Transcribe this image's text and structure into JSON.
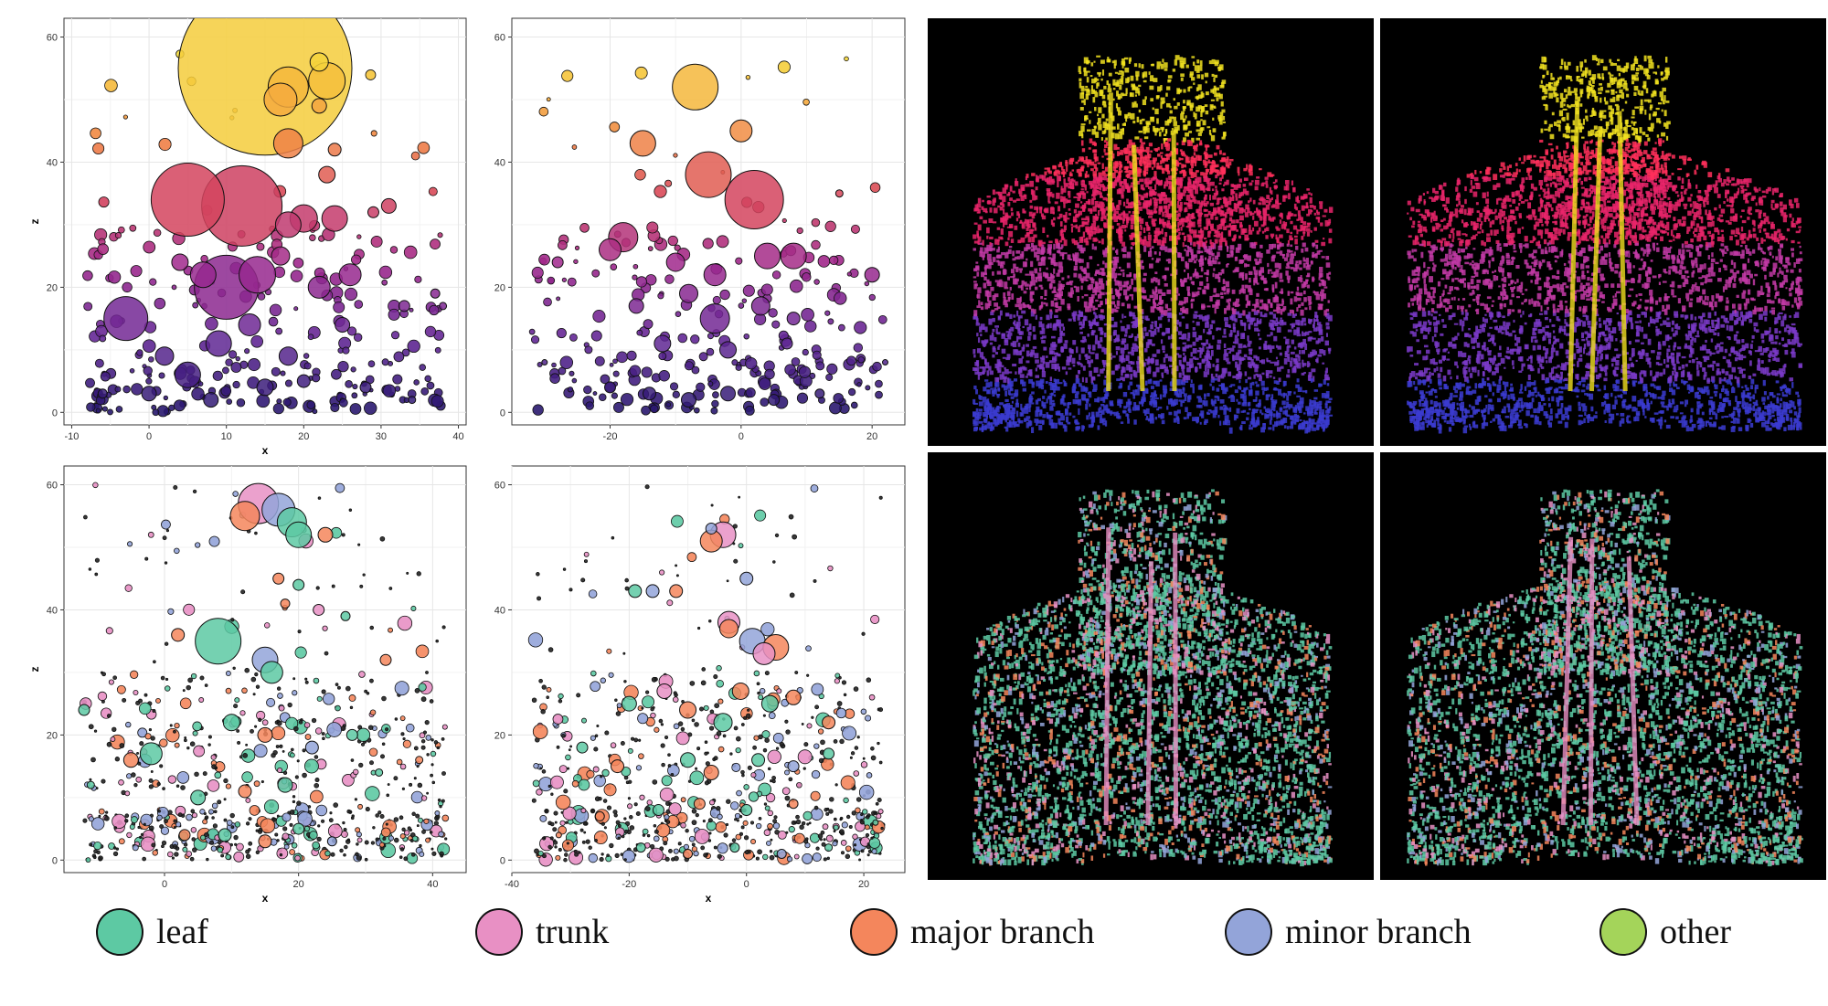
{
  "legend": {
    "items": [
      {
        "label": "leaf",
        "color": "#5dc9a3"
      },
      {
        "label": "trunk",
        "color": "#e890c4"
      },
      {
        "label": "major branch",
        "color": "#f4865c"
      },
      {
        "label": "minor branch",
        "color": "#93a4d9"
      },
      {
        "label": "other",
        "color": "#a4d45a"
      }
    ]
  },
  "chart_data": [
    {
      "type": "scatter",
      "xlabel": "x",
      "ylabel": "z",
      "xlim": [
        -11,
        41
      ],
      "ylim": [
        -2,
        63
      ],
      "xticks": [
        -10,
        0,
        10,
        20,
        30,
        40
      ],
      "yticks": [
        0,
        20,
        40,
        60
      ],
      "color_encoding": "height (blue-purple-magenta-orange-yellow)",
      "points": [
        {
          "x": 15,
          "y": 55,
          "r": 95
        },
        {
          "x": 18,
          "y": 52,
          "r": 22
        },
        {
          "x": 17,
          "y": 50,
          "r": 18
        },
        {
          "x": 23,
          "y": 53,
          "r": 20
        },
        {
          "x": 22,
          "y": 56,
          "r": 10
        },
        {
          "x": 22,
          "y": 49,
          "r": 8
        },
        {
          "x": 18,
          "y": 43,
          "r": 16
        },
        {
          "x": 24,
          "y": 42,
          "r": 7
        },
        {
          "x": 23,
          "y": 38,
          "r": 9
        },
        {
          "x": 5,
          "y": 34,
          "r": 40
        },
        {
          "x": 12,
          "y": 33,
          "r": 44
        },
        {
          "x": 18,
          "y": 30,
          "r": 14
        },
        {
          "x": 20,
          "y": 31,
          "r": 15
        },
        {
          "x": 24,
          "y": 31,
          "r": 14
        },
        {
          "x": 29,
          "y": 32,
          "r": 6
        },
        {
          "x": 31,
          "y": 33,
          "r": 8
        },
        {
          "x": 10,
          "y": 20,
          "r": 35
        },
        {
          "x": -3,
          "y": 15,
          "r": 24
        },
        {
          "x": 14,
          "y": 22,
          "r": 20
        },
        {
          "x": 7,
          "y": 22,
          "r": 14
        },
        {
          "x": 22,
          "y": 20,
          "r": 12
        },
        {
          "x": 26,
          "y": 22,
          "r": 12
        },
        {
          "x": 17,
          "y": 25,
          "r": 10
        },
        {
          "x": 4,
          "y": 24,
          "r": 9
        },
        {
          "x": 2,
          "y": 9,
          "r": 10
        },
        {
          "x": 9,
          "y": 11,
          "r": 14
        },
        {
          "x": 13,
          "y": 14,
          "r": 12
        },
        {
          "x": 5,
          "y": 6,
          "r": 14
        },
        {
          "x": 18,
          "y": 9,
          "r": 10
        },
        {
          "x": 25,
          "y": 14,
          "r": 8
        },
        {
          "x": 33,
          "y": 17,
          "r": 6
        },
        {
          "x": 37,
          "y": 19,
          "r": 5
        },
        {
          "x": 0,
          "y": 3,
          "r": 8
        },
        {
          "x": 8,
          "y": 2,
          "r": 8
        },
        {
          "x": 15,
          "y": 4,
          "r": 9
        },
        {
          "x": 20,
          "y": 5,
          "r": 7
        },
        {
          "x": 28,
          "y": 4,
          "r": 6
        },
        {
          "x": -6,
          "y": 3,
          "r": 5
        },
        {
          "x": 34,
          "y": 2,
          "r": 4
        },
        {
          "x": 38,
          "y": 17,
          "r": 4
        }
      ]
    },
    {
      "type": "scatter",
      "xlabel": "",
      "ylabel": "",
      "xlim": [
        -35,
        25
      ],
      "ylim": [
        -2,
        63
      ],
      "xticks": [
        -20,
        0,
        20
      ],
      "yticks": [
        0,
        20,
        40,
        60
      ],
      "color_encoding": "height (blue-purple-magenta-orange-yellow)",
      "points": [
        {
          "x": -7,
          "y": 52,
          "r": 25
        },
        {
          "x": 0,
          "y": 45,
          "r": 12
        },
        {
          "x": -15,
          "y": 43,
          "r": 14
        },
        {
          "x": -5,
          "y": 38,
          "r": 25
        },
        {
          "x": 2,
          "y": 34,
          "r": 32
        },
        {
          "x": 15,
          "y": 35,
          "r": 4
        },
        {
          "x": -18,
          "y": 28,
          "r": 16
        },
        {
          "x": -20,
          "y": 26,
          "r": 12
        },
        {
          "x": -10,
          "y": 24,
          "r": 10
        },
        {
          "x": -4,
          "y": 22,
          "r": 12
        },
        {
          "x": 4,
          "y": 25,
          "r": 14
        },
        {
          "x": 8,
          "y": 25,
          "r": 14
        },
        {
          "x": 20,
          "y": 22,
          "r": 8
        },
        {
          "x": -28,
          "y": 24,
          "r": 6
        },
        {
          "x": -16,
          "y": 17,
          "r": 8
        },
        {
          "x": -8,
          "y": 19,
          "r": 10
        },
        {
          "x": -4,
          "y": 15,
          "r": 16
        },
        {
          "x": 3,
          "y": 17,
          "r": 10
        },
        {
          "x": 8,
          "y": 15,
          "r": 7
        },
        {
          "x": -12,
          "y": 11,
          "r": 9
        },
        {
          "x": -2,
          "y": 10,
          "r": 9
        },
        {
          "x": 7,
          "y": 11,
          "r": 6
        },
        {
          "x": -20,
          "y": 4,
          "r": 6
        },
        {
          "x": -14,
          "y": 3,
          "r": 7
        },
        {
          "x": -8,
          "y": 2,
          "r": 8
        },
        {
          "x": -2,
          "y": 3,
          "r": 8
        },
        {
          "x": 5,
          "y": 2,
          "r": 6
        },
        {
          "x": 12,
          "y": 3,
          "r": 5
        },
        {
          "x": -30,
          "y": 8,
          "r": 3
        },
        {
          "x": 22,
          "y": 8,
          "r": 3
        }
      ]
    },
    {
      "type": "scatter",
      "xlabel": "x",
      "ylabel": "z",
      "xlim": [
        -15,
        45
      ],
      "ylim": [
        -2,
        63
      ],
      "xticks": [
        0,
        20,
        40
      ],
      "yticks": [
        0,
        20,
        40,
        60
      ],
      "color_encoding": "class (leaf, trunk, major branch, minor branch, other)",
      "points": [
        {
          "x": 14,
          "y": 57,
          "r": 22,
          "c": "trunk"
        },
        {
          "x": 12,
          "y": 55,
          "r": 16,
          "c": "major branch"
        },
        {
          "x": 17,
          "y": 56,
          "r": 18,
          "c": "minor branch"
        },
        {
          "x": 19,
          "y": 54,
          "r": 16,
          "c": "leaf"
        },
        {
          "x": 20,
          "y": 52,
          "r": 14,
          "c": "leaf"
        },
        {
          "x": 24,
          "y": 52,
          "r": 8,
          "c": "major branch"
        },
        {
          "x": 17,
          "y": 45,
          "r": 6,
          "c": "major branch"
        },
        {
          "x": 20,
          "y": 44,
          "r": 6,
          "c": "leaf"
        },
        {
          "x": 18,
          "y": 41,
          "r": 5,
          "c": "major branch"
        },
        {
          "x": 23,
          "y": 40,
          "r": 6,
          "c": "trunk"
        },
        {
          "x": 27,
          "y": 39,
          "r": 5,
          "c": "leaf"
        },
        {
          "x": 8,
          "y": 35,
          "r": 25,
          "c": "leaf"
        },
        {
          "x": 15,
          "y": 32,
          "r": 14,
          "c": "minor branch"
        },
        {
          "x": 16,
          "y": 30,
          "r": 12,
          "c": "leaf"
        },
        {
          "x": 2,
          "y": 36,
          "r": 7,
          "c": "major branch"
        },
        {
          "x": 33,
          "y": 32,
          "r": 6,
          "c": "major branch"
        },
        {
          "x": -12,
          "y": 24,
          "r": 6,
          "c": "leaf"
        },
        {
          "x": -2,
          "y": 17,
          "r": 12,
          "c": "leaf"
        },
        {
          "x": -5,
          "y": 16,
          "r": 8,
          "c": "major branch"
        },
        {
          "x": 10,
          "y": 22,
          "r": 9,
          "c": "leaf"
        },
        {
          "x": 15,
          "y": 20,
          "r": 8,
          "c": "major branch"
        },
        {
          "x": 22,
          "y": 18,
          "r": 7,
          "c": "minor branch"
        },
        {
          "x": 28,
          "y": 20,
          "r": 6,
          "c": "leaf"
        },
        {
          "x": 5,
          "y": 10,
          "r": 8,
          "c": "leaf"
        },
        {
          "x": 12,
          "y": 11,
          "r": 7,
          "c": "major branch"
        },
        {
          "x": 18,
          "y": 12,
          "r": 8,
          "c": "leaf"
        },
        {
          "x": 3,
          "y": 4,
          "r": 6,
          "c": "major branch"
        },
        {
          "x": 9,
          "y": 4,
          "r": 7,
          "c": "leaf"
        },
        {
          "x": 15,
          "y": 3,
          "r": 7,
          "c": "major branch"
        },
        {
          "x": 20,
          "y": 5,
          "r": 6,
          "c": "leaf"
        },
        {
          "x": 25,
          "y": 3,
          "r": 5,
          "c": "minor branch"
        },
        {
          "x": 32,
          "y": 14,
          "r": 4,
          "c": "leaf"
        },
        {
          "x": 38,
          "y": 16,
          "r": 4,
          "c": "major branch"
        },
        {
          "x": -11,
          "y": 12,
          "r": 4,
          "c": "leaf"
        }
      ]
    },
    {
      "type": "scatter",
      "xlabel": "x",
      "ylabel": "",
      "xlim": [
        -40,
        27
      ],
      "ylim": [
        -2,
        63
      ],
      "xticks": [
        -40,
        -20,
        0,
        20
      ],
      "yticks": [
        0,
        20,
        40,
        60
      ],
      "color_encoding": "class (leaf, trunk, major branch, minor branch, other)",
      "points": [
        {
          "x": -4,
          "y": 52,
          "r": 14,
          "c": "trunk"
        },
        {
          "x": -6,
          "y": 51,
          "r": 12,
          "c": "major branch"
        },
        {
          "x": -6,
          "y": 53,
          "r": 6,
          "c": "minor branch"
        },
        {
          "x": 0,
          "y": 45,
          "r": 7,
          "c": "minor branch"
        },
        {
          "x": -19,
          "y": 43,
          "r": 7,
          "c": "leaf"
        },
        {
          "x": -16,
          "y": 43,
          "r": 7,
          "c": "minor branch"
        },
        {
          "x": -12,
          "y": 43,
          "r": 7,
          "c": "major branch"
        },
        {
          "x": -3,
          "y": 38,
          "r": 12,
          "c": "trunk"
        },
        {
          "x": -3,
          "y": 37,
          "r": 10,
          "c": "major branch"
        },
        {
          "x": 1,
          "y": 35,
          "r": 14,
          "c": "minor branch"
        },
        {
          "x": 3,
          "y": 33,
          "r": 12,
          "c": "trunk"
        },
        {
          "x": 5,
          "y": 34,
          "r": 14,
          "c": "major branch"
        },
        {
          "x": -20,
          "y": 25,
          "r": 8,
          "c": "leaf"
        },
        {
          "x": -14,
          "y": 27,
          "r": 8,
          "c": "trunk"
        },
        {
          "x": -10,
          "y": 24,
          "r": 9,
          "c": "major branch"
        },
        {
          "x": -4,
          "y": 22,
          "r": 10,
          "c": "leaf"
        },
        {
          "x": -1,
          "y": 27,
          "r": 9,
          "c": "major branch"
        },
        {
          "x": 4,
          "y": 25,
          "r": 9,
          "c": "leaf"
        },
        {
          "x": 8,
          "y": 26,
          "r": 8,
          "c": "major branch"
        },
        {
          "x": 14,
          "y": 22,
          "r": 7,
          "c": "major branch"
        },
        {
          "x": -28,
          "y": 18,
          "r": 6,
          "c": "leaf"
        },
        {
          "x": -22,
          "y": 15,
          "r": 7,
          "c": "major branch"
        },
        {
          "x": -10,
          "y": 16,
          "r": 8,
          "c": "leaf"
        },
        {
          "x": -6,
          "y": 14,
          "r": 8,
          "c": "major branch"
        },
        {
          "x": 2,
          "y": 16,
          "r": 7,
          "c": "leaf"
        },
        {
          "x": 8,
          "y": 15,
          "r": 6,
          "c": "minor branch"
        },
        {
          "x": 14,
          "y": 17,
          "r": 6,
          "c": "leaf"
        },
        {
          "x": -25,
          "y": 7,
          "r": 5,
          "c": "major branch"
        },
        {
          "x": -15,
          "y": 8,
          "r": 6,
          "c": "leaf"
        },
        {
          "x": -8,
          "y": 9,
          "r": 6,
          "c": "major branch"
        },
        {
          "x": 0,
          "y": 8,
          "r": 6,
          "c": "leaf"
        },
        {
          "x": 8,
          "y": 9,
          "r": 5,
          "c": "major branch"
        },
        {
          "x": -18,
          "y": 2,
          "r": 5,
          "c": "leaf"
        },
        {
          "x": -10,
          "y": 1,
          "r": 5,
          "c": "major branch"
        },
        {
          "x": -2,
          "y": 2,
          "r": 5,
          "c": "leaf"
        },
        {
          "x": 6,
          "y": 1,
          "r": 5,
          "c": "minor branch"
        },
        {
          "x": 14,
          "y": 2,
          "r": 4,
          "c": "leaf"
        },
        {
          "x": -32,
          "y": 4,
          "r": 3,
          "c": "major branch"
        },
        {
          "x": 22,
          "y": 6,
          "r": 3,
          "c": "leaf"
        }
      ]
    }
  ]
}
